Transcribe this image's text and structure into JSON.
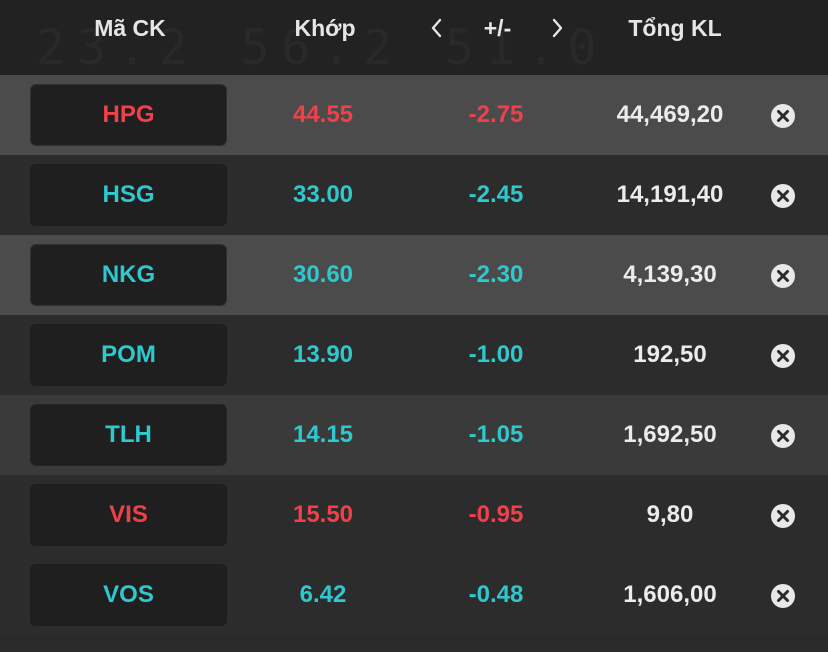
{
  "colors": {
    "decrease": "#f0404a",
    "reference": "#2ec8cf",
    "text": "#ececec"
  },
  "header": {
    "code_label": "Mã CK",
    "price_label": "Khớp",
    "change_label": "+/-",
    "volume_label": "Tổng KL",
    "prev_icon": "chevron-left-icon",
    "next_icon": "chevron-right-icon"
  },
  "rows": [
    {
      "code": "HPG",
      "price": "44.55",
      "change": "-2.75",
      "volume": "44,469,20",
      "tone": "red"
    },
    {
      "code": "HSG",
      "price": "33.00",
      "change": "-2.45",
      "volume": "14,191,40",
      "tone": "teal"
    },
    {
      "code": "NKG",
      "price": "30.60",
      "change": "-2.30",
      "volume": "4,139,30",
      "tone": "teal"
    },
    {
      "code": "POM",
      "price": "13.90",
      "change": "-1.00",
      "volume": "192,50",
      "tone": "teal"
    },
    {
      "code": "TLH",
      "price": "14.15",
      "change": "-1.05",
      "volume": "1,692,50",
      "tone": "teal"
    },
    {
      "code": "VIS",
      "price": "15.50",
      "change": "-0.95",
      "volume": "9,80",
      "tone": "red"
    },
    {
      "code": "VOS",
      "price": "6.42",
      "change": "-0.48",
      "volume": "1,606,00",
      "tone": "teal"
    }
  ]
}
